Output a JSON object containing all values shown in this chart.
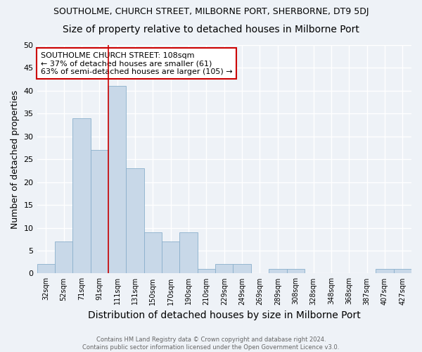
{
  "title": "SOUTHOLME, CHURCH STREET, MILBORNE PORT, SHERBORNE, DT9 5DJ",
  "subtitle": "Size of property relative to detached houses in Milborne Port",
  "xlabel": "Distribution of detached houses by size in Milborne Port",
  "ylabel": "Number of detached properties",
  "categories": [
    "32sqm",
    "52sqm",
    "71sqm",
    "91sqm",
    "111sqm",
    "131sqm",
    "150sqm",
    "170sqm",
    "190sqm",
    "210sqm",
    "229sqm",
    "249sqm",
    "269sqm",
    "289sqm",
    "308sqm",
    "328sqm",
    "348sqm",
    "368sqm",
    "387sqm",
    "407sqm",
    "427sqm"
  ],
  "values": [
    2,
    7,
    34,
    27,
    41,
    23,
    9,
    7,
    9,
    1,
    2,
    2,
    0,
    1,
    1,
    0,
    0,
    0,
    0,
    1,
    1
  ],
  "bar_color": "#c8d8e8",
  "bar_edgecolor": "#8ab0cc",
  "ylim": [
    0,
    50
  ],
  "yticks": [
    0,
    5,
    10,
    15,
    20,
    25,
    30,
    35,
    40,
    45,
    50
  ],
  "vline_x": 3.5,
  "vline_color": "#cc0000",
  "annotation_text": "SOUTHOLME CHURCH STREET: 108sqm\n← 37% of detached houses are smaller (61)\n63% of semi-detached houses are larger (105) →",
  "annotation_box_color": "#ffffff",
  "annotation_box_edgecolor": "#cc0000",
  "footer_line1": "Contains HM Land Registry data © Crown copyright and database right 2024.",
  "footer_line2": "Contains public sector information licensed under the Open Government Licence v3.0.",
  "background_color": "#eef2f7",
  "grid_color": "#ffffff",
  "title_fontsize": 9,
  "subtitle_fontsize": 10,
  "xlabel_fontsize": 10,
  "ylabel_fontsize": 9,
  "annotation_fontsize": 8,
  "footer_fontsize": 6
}
